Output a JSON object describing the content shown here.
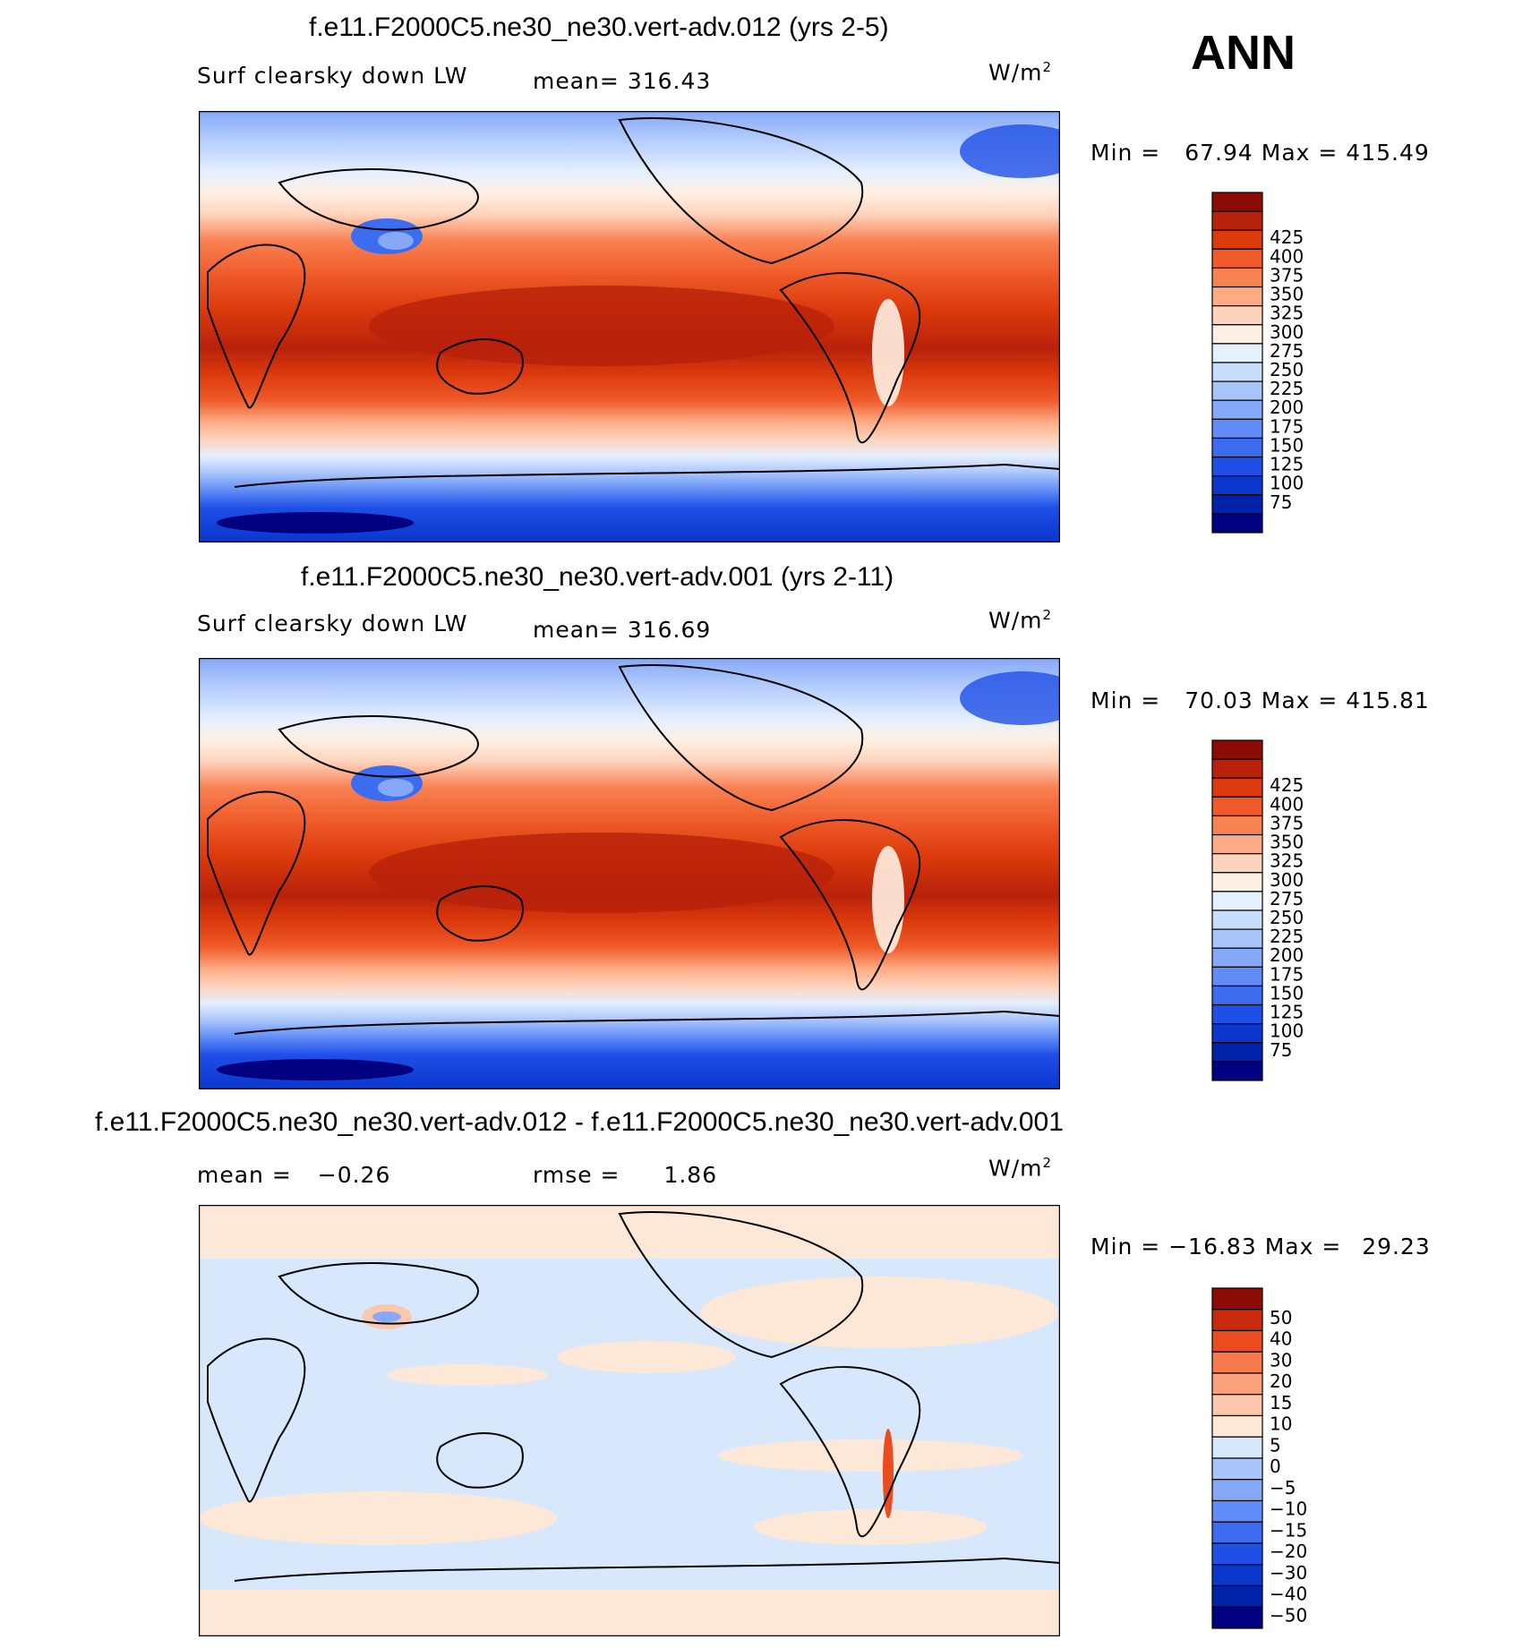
{
  "season": "ANN",
  "colors": {
    "abs_scale": [
      "#000080",
      "#0022a8",
      "#0a36cc",
      "#1e4fe6",
      "#3c6cf0",
      "#5f8cf7",
      "#86a8f9",
      "#a8c4fb",
      "#c8dcfc",
      "#e4efff",
      "#fff0e3",
      "#fed3bb",
      "#fcab84",
      "#f98253",
      "#ef5a28",
      "#dc3a0c",
      "#b8220a",
      "#8b0b07"
    ],
    "diff_scale": [
      "#000080",
      "#0022a8",
      "#0a36cc",
      "#1e4fe6",
      "#3c6cf0",
      "#5f8cf7",
      "#86a8f9",
      "#a8c4fb",
      "#d7e8fc",
      "#fde7d6",
      "#fcc8ad",
      "#fba27c",
      "#f77a4c",
      "#ea4b1f",
      "#c82b0b",
      "#8b0b07"
    ],
    "coastline": "#000000"
  },
  "chart_data": [
    {
      "type": "heatmap",
      "title": "f.e11.F2000C5.ne30_ne30.vert-adv.012 (yrs 2-5)",
      "variable": "Surf clearsky down LW",
      "mean_label": "mean=",
      "mean": "316.43",
      "units_base": "W/m",
      "units_sup": "2",
      "min_label": "Min =",
      "min": "67.94",
      "max_label": "Max =",
      "max": "415.49",
      "levels": [
        "425",
        "400",
        "375",
        "350",
        "325",
        "300",
        "275",
        "250",
        "225",
        "200",
        "175",
        "150",
        "125",
        "100",
        "75"
      ]
    },
    {
      "type": "heatmap",
      "title": "f.e11.F2000C5.ne30_ne30.vert-adv.001 (yrs 2-11)",
      "variable": "Surf clearsky down LW",
      "mean_label": "mean=",
      "mean": "316.69",
      "units_base": "W/m",
      "units_sup": "2",
      "min_label": "Min =",
      "min": "70.03",
      "max_label": "Max =",
      "max": "415.81",
      "levels": [
        "425",
        "400",
        "375",
        "350",
        "325",
        "300",
        "275",
        "250",
        "225",
        "200",
        "175",
        "150",
        "125",
        "100",
        "75"
      ]
    },
    {
      "type": "heatmap",
      "title": "f.e11.F2000C5.ne30_ne30.vert-adv.012 - f.e11.F2000C5.ne30_ne30.vert-adv.001",
      "mean_label": "mean =",
      "mean": "−0.26",
      "rmse_label": "rmse =",
      "rmse": "1.86",
      "units_base": "W/m",
      "units_sup": "2",
      "min_label": "Min =",
      "min": "−16.83",
      "max_label": "Max =",
      "max": "29.23",
      "levels": [
        "50",
        "40",
        "30",
        "20",
        "15",
        "10",
        "5",
        "0",
        "−5",
        "−10",
        "−15",
        "−20",
        "−30",
        "−40",
        "−50"
      ]
    }
  ]
}
